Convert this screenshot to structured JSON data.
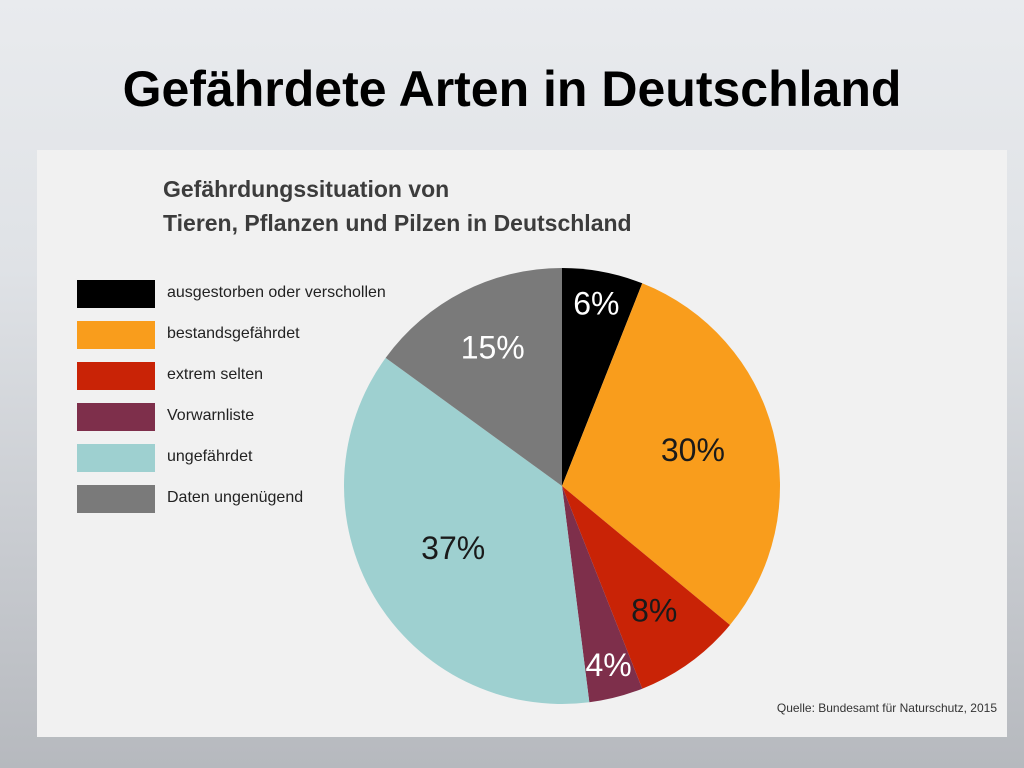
{
  "slide": {
    "title": "Gefährdete Arten in Deutschland"
  },
  "chart_data": {
    "type": "pie",
    "title_line1": "Gefährdungssituation von",
    "title_line2": "Tieren, Pflanzen und Pilzen in Deutschland",
    "source": "Quelle: Bundesamt für Naturschutz, 2015",
    "legend_placement": "left",
    "slices": [
      {
        "name": "ausgestorben oder verschollen",
        "value": 6,
        "label": "6%",
        "color": "#000000",
        "label_color": "#ffffff"
      },
      {
        "name": "bestandsgefährdet",
        "value": 30,
        "label": "30%",
        "color": "#f99d1c",
        "label_color": "#1a1a1a"
      },
      {
        "name": "extrem selten",
        "value": 8,
        "label": "8%",
        "color": "#c92306",
        "label_color": "#1a1a1a"
      },
      {
        "name": "Vorwarnliste",
        "value": 4,
        "label": "4%",
        "color": "#7e2f4b",
        "label_color": "#ffffff"
      },
      {
        "name": "ungefährdet",
        "value": 37,
        "label": "37%",
        "color": "#9ed0d0",
        "label_color": "#1a1a1a"
      },
      {
        "name": "Daten ungenügend",
        "value": 15,
        "label": "15%",
        "color": "#7a7a7a",
        "label_color": "#ffffff"
      }
    ]
  }
}
